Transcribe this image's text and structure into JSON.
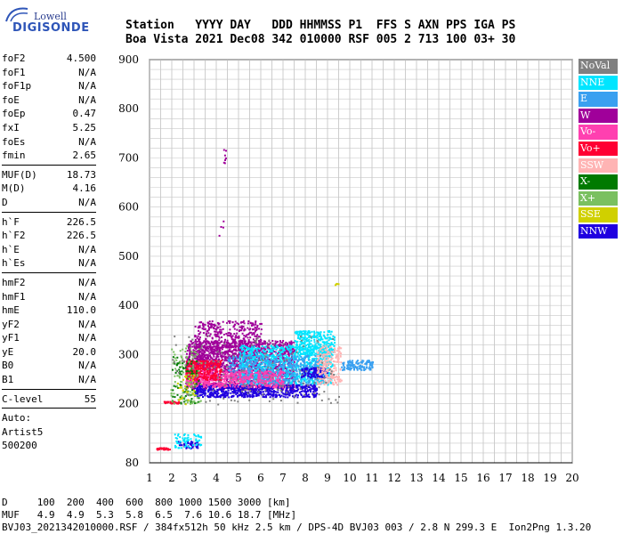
{
  "logo": {
    "top": "Lowell",
    "bottom": "DIGISONDE"
  },
  "header": {
    "line1": "Station   YYYY DAY   DDD HHMMSS P1  FFS S AXN PPS IGA PS",
    "line2": "Boa Vista 2021 Dec08 342 010000 RSF 005 2 713 100 03+ 30"
  },
  "params": [
    [
      {
        "k": "foF2",
        "v": "4.500"
      },
      {
        "k": "foF1",
        "v": "N/A"
      },
      {
        "k": "foF1p",
        "v": "N/A"
      },
      {
        "k": "foE",
        "v": "N/A"
      },
      {
        "k": "foEp",
        "v": "0.47"
      },
      {
        "k": "fxI",
        "v": "5.25"
      },
      {
        "k": "foEs",
        "v": "N/A"
      },
      {
        "k": "fmin",
        "v": "2.65"
      }
    ],
    [
      {
        "k": "MUF(D)",
        "v": "18.73"
      },
      {
        "k": "M(D)",
        "v": "4.16"
      },
      {
        "k": "D",
        "v": "N/A"
      }
    ],
    [
      {
        "k": "h`F",
        "v": "226.5"
      },
      {
        "k": "h`F2",
        "v": "226.5"
      },
      {
        "k": "h`E",
        "v": "N/A"
      },
      {
        "k": "h`Es",
        "v": "N/A"
      }
    ],
    [
      {
        "k": "hmF2",
        "v": "N/A"
      },
      {
        "k": "hmF1",
        "v": "N/A"
      },
      {
        "k": "hmE",
        "v": "110.0"
      },
      {
        "k": "yF2",
        "v": "N/A"
      },
      {
        "k": "yF1",
        "v": "N/A"
      },
      {
        "k": "yE",
        "v": "20.0"
      },
      {
        "k": "B0",
        "v": "N/A"
      },
      {
        "k": "B1",
        "v": "N/A"
      }
    ],
    [
      {
        "k": "C-level",
        "v": "55"
      }
    ]
  ],
  "auto": {
    "line1": "Auto:",
    "line2": "Artist5",
    "line3": "500200"
  },
  "footer": {
    "d_line": "D     100  200  400  600  800 1000 1500 3000 [km]",
    "muf_line": "MUF   4.9  4.9  5.3  5.8  6.5  7.6 10.6 18.7 [MHz]",
    "file_line": "BVJ03_2021342010000.RSF / 384fx512h 50 kHz 2.5 km / DPS-4D BVJ03 003 / 2.8 N 299.3 E  Ion2Png 1.3.20"
  },
  "legend": [
    {
      "label": "NoVal",
      "color": "#808080"
    },
    {
      "label": "NNE",
      "color": "#00e5ff"
    },
    {
      "label": "E",
      "color": "#3aa0f0"
    },
    {
      "label": "W",
      "color": "#a0009a"
    },
    {
      "label": "Vo-",
      "color": "#ff40b0"
    },
    {
      "label": "Vo+",
      "color": "#ff0033"
    },
    {
      "label": "SSW",
      "color": "#ffb4b4"
    },
    {
      "label": "X-",
      "color": "#007a00"
    },
    {
      "label": "X+",
      "color": "#7ac060"
    },
    {
      "label": "SSE",
      "color": "#d0d000"
    },
    {
      "label": "NNW",
      "color": "#2000e0"
    }
  ],
  "chart_data": {
    "type": "scatter",
    "xlim": [
      1,
      20
    ],
    "ylim": [
      80,
      900
    ],
    "x_ticks": [
      "1",
      "2",
      "3",
      "4",
      "5",
      "6",
      "7",
      "8",
      "9",
      "10",
      "11",
      "12",
      "13",
      "14",
      "15",
      "16",
      "17",
      "18",
      "19",
      "20"
    ],
    "y_ticks": [
      "900",
      "800",
      "700",
      "600",
      "500",
      "400",
      "300",
      "200",
      "80"
    ],
    "grid": true,
    "clusters": [
      {
        "series": "W",
        "x": [
          2.6,
          7.5
        ],
        "y": [
          230,
          330
        ],
        "n": 1600
      },
      {
        "series": "W",
        "x": [
          3.0,
          6.0
        ],
        "y": [
          280,
          370
        ],
        "n": 500
      },
      {
        "series": "NNE",
        "x": [
          5.0,
          9.2
        ],
        "y": [
          240,
          320
        ],
        "n": 900
      },
      {
        "series": "NNE",
        "x": [
          7.5,
          9.3
        ],
        "y": [
          300,
          350
        ],
        "n": 300
      },
      {
        "series": "E",
        "x": [
          4.5,
          8.8
        ],
        "y": [
          240,
          300
        ],
        "n": 500
      },
      {
        "series": "E",
        "x": [
          9.6,
          11.0
        ],
        "y": [
          270,
          290
        ],
        "n": 120
      },
      {
        "series": "NNW",
        "x": [
          3.0,
          8.5
        ],
        "y": [
          215,
          240
        ],
        "n": 600
      },
      {
        "series": "NNW",
        "x": [
          7.8,
          9.0
        ],
        "y": [
          255,
          275
        ],
        "n": 120
      },
      {
        "series": "NNW",
        "x": [
          2.2,
          3.2
        ],
        "y": [
          110,
          125
        ],
        "n": 40
      },
      {
        "series": "Vo-",
        "x": [
          2.6,
          7.0
        ],
        "y": [
          235,
          270
        ],
        "n": 500
      },
      {
        "series": "Vo+",
        "x": [
          2.6,
          4.2
        ],
        "y": [
          250,
          290
        ],
        "n": 250
      },
      {
        "series": "Vo+",
        "x": [
          1.6,
          2.3
        ],
        "y": [
          202,
          206
        ],
        "n": 40
      },
      {
        "series": "Vo+",
        "x": [
          1.3,
          1.9
        ],
        "y": [
          108,
          112
        ],
        "n": 25
      },
      {
        "series": "SSW",
        "x": [
          8.5,
          9.6
        ],
        "y": [
          240,
          320
        ],
        "n": 200
      },
      {
        "series": "X-",
        "x": [
          2.0,
          3.2
        ],
        "y": [
          200,
          300
        ],
        "n": 80
      },
      {
        "series": "X+",
        "x": [
          1.9,
          3.3
        ],
        "y": [
          200,
          320
        ],
        "n": 100
      },
      {
        "series": "SSE",
        "x": [
          2.2,
          3.0
        ],
        "y": [
          200,
          260
        ],
        "n": 30
      },
      {
        "series": "NoVal",
        "x": [
          2.0,
          9.5
        ],
        "y": [
          200,
          340
        ],
        "n": 150
      },
      {
        "series": "NNE",
        "x": [
          2.1,
          3.3
        ],
        "y": [
          112,
          140
        ],
        "n": 60
      },
      {
        "series": "W",
        "x": [
          4.3,
          4.4
        ],
        "y": [
          690,
          720
        ],
        "n": 8
      },
      {
        "series": "W",
        "x": [
          4.1,
          4.3
        ],
        "y": [
          540,
          575
        ],
        "n": 4
      },
      {
        "series": "SSE",
        "x": [
          9.3,
          9.5
        ],
        "y": [
          443,
          446
        ],
        "n": 4
      }
    ]
  }
}
